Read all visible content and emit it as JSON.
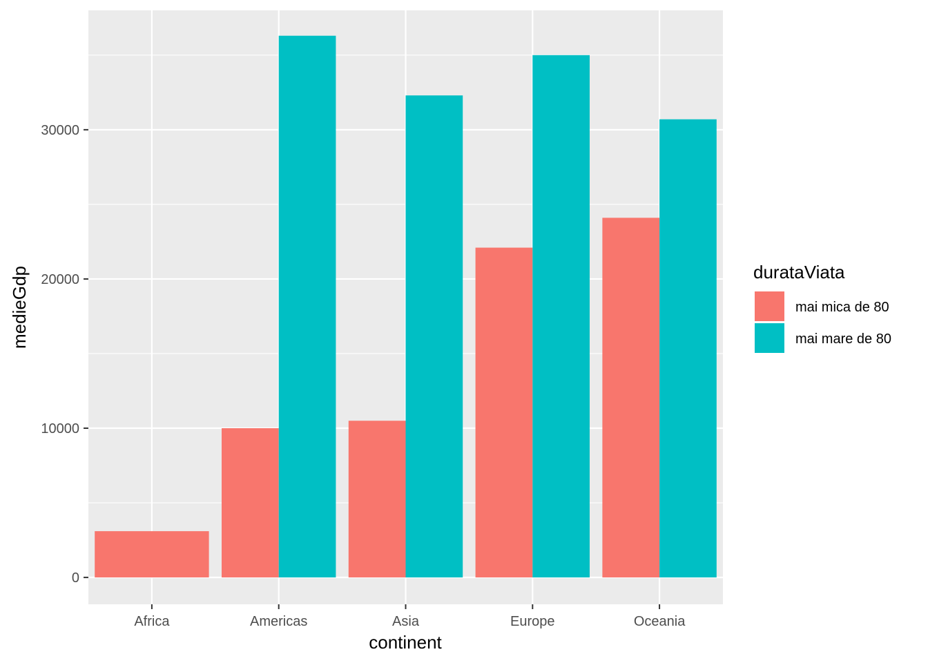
{
  "chart_data": {
    "type": "bar",
    "position": "dodge",
    "title": "",
    "xlabel": "continent",
    "ylabel": "medieGdp",
    "categories": [
      "Africa",
      "Americas",
      "Asia",
      "Europe",
      "Oceania"
    ],
    "ylim": [
      -1800,
      38000
    ],
    "yticks": [
      0,
      10000,
      20000,
      30000
    ],
    "ytick_labels": [
      "0",
      "10000",
      "20000",
      "30000"
    ],
    "grid": true,
    "legend": {
      "title": "durataViata",
      "placement": "right"
    },
    "series": [
      {
        "name": "mai mica de 80",
        "color": "#F8766D",
        "values": [
          3100,
          10000,
          10500,
          22100,
          24100
        ]
      },
      {
        "name": "mai mare de 80",
        "color": "#00BFC4",
        "values": [
          null,
          36300,
          32300,
          35000,
          30700
        ]
      }
    ],
    "colors": {
      "panel_background": "#EBEBEB",
      "grid": "#FFFFFF",
      "bar_low": "#F8766D",
      "bar_high": "#00BFC4"
    }
  }
}
